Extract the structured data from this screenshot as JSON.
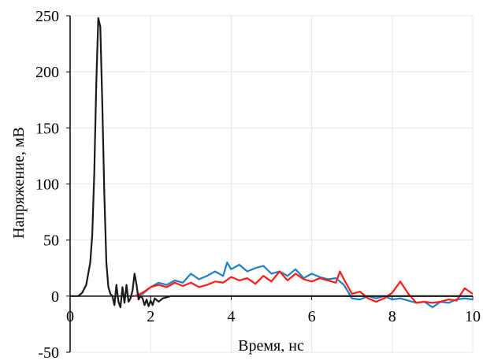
{
  "chart_data": {
    "type": "line",
    "xlabel": "Время, нс",
    "ylabel": "Напряжение,  мВ",
    "xlim": [
      0,
      10
    ],
    "ylim": [
      -50,
      250
    ],
    "xticks": [
      0,
      2,
      4,
      6,
      8,
      10
    ],
    "yticks": [
      -50,
      0,
      50,
      100,
      150,
      200,
      250
    ],
    "grid": true,
    "series": [
      {
        "color": "#1a1a1a",
        "x": [
          0,
          0.2,
          0.3,
          0.4,
          0.5,
          0.55,
          0.6,
          0.65,
          0.7,
          0.75,
          0.8,
          0.85,
          0.9,
          0.95,
          1.0,
          1.05,
          1.1,
          1.15,
          1.2,
          1.25,
          1.3,
          1.35,
          1.4,
          1.45,
          1.5,
          1.55,
          1.6,
          1.65,
          1.7,
          1.75,
          1.8,
          1.85,
          1.9,
          1.95,
          2.0,
          2.05,
          2.1,
          2.2,
          2.3,
          2.4,
          2.5,
          10
        ],
        "values": [
          0,
          0,
          3,
          10,
          30,
          55,
          110,
          190,
          248,
          240,
          170,
          90,
          30,
          8,
          2,
          0,
          -8,
          10,
          -5,
          -10,
          8,
          -6,
          10,
          -5,
          -2,
          5,
          20,
          10,
          -3,
          0,
          -2,
          -8,
          -3,
          -9,
          -4,
          -8,
          -2,
          -5,
          -2,
          -1,
          0,
          0
        ]
      },
      {
        "color": "#1f7ec8",
        "x": [
          1.6,
          1.8,
          2.0,
          2.2,
          2.4,
          2.6,
          2.8,
          3.0,
          3.2,
          3.4,
          3.6,
          3.8,
          3.9,
          4.0,
          4.2,
          4.4,
          4.6,
          4.8,
          5.0,
          5.2,
          5.4,
          5.6,
          5.8,
          6.0,
          6.2,
          6.4,
          6.6,
          6.8,
          7.0,
          7.2,
          7.4,
          7.6,
          7.8,
          8.0,
          8.2,
          8.4,
          8.6,
          8.8,
          9.0,
          9.2,
          9.4,
          9.6,
          9.8,
          10
        ],
        "values": [
          0,
          2,
          8,
          12,
          10,
          14,
          12,
          20,
          15,
          18,
          22,
          18,
          30,
          24,
          28,
          22,
          25,
          27,
          20,
          22,
          18,
          24,
          16,
          20,
          17,
          15,
          16,
          10,
          -2,
          -3,
          0,
          -2,
          0,
          -3,
          -2,
          -4,
          -6,
          -5,
          -10,
          -5,
          -6,
          -3,
          -2,
          -3
        ]
      },
      {
        "color": "#ff1a1a",
        "x": [
          1.6,
          1.8,
          2.0,
          2.2,
          2.4,
          2.6,
          2.8,
          3.0,
          3.2,
          3.4,
          3.6,
          3.8,
          4.0,
          4.2,
          4.4,
          4.6,
          4.8,
          5.0,
          5.2,
          5.4,
          5.6,
          5.8,
          6.0,
          6.2,
          6.4,
          6.6,
          6.7,
          6.8,
          7.0,
          7.2,
          7.4,
          7.6,
          7.8,
          8.0,
          8.2,
          8.4,
          8.6,
          8.8,
          9.0,
          9.2,
          9.4,
          9.6,
          9.8,
          10
        ],
        "values": [
          0,
          3,
          8,
          10,
          8,
          12,
          9,
          12,
          8,
          10,
          13,
          12,
          17,
          14,
          16,
          11,
          18,
          13,
          22,
          14,
          20,
          15,
          13,
          16,
          14,
          12,
          22,
          15,
          2,
          4,
          -2,
          -5,
          -2,
          3,
          13,
          2,
          -6,
          -5,
          -6,
          -5,
          -3,
          -4,
          7,
          2
        ]
      }
    ]
  }
}
